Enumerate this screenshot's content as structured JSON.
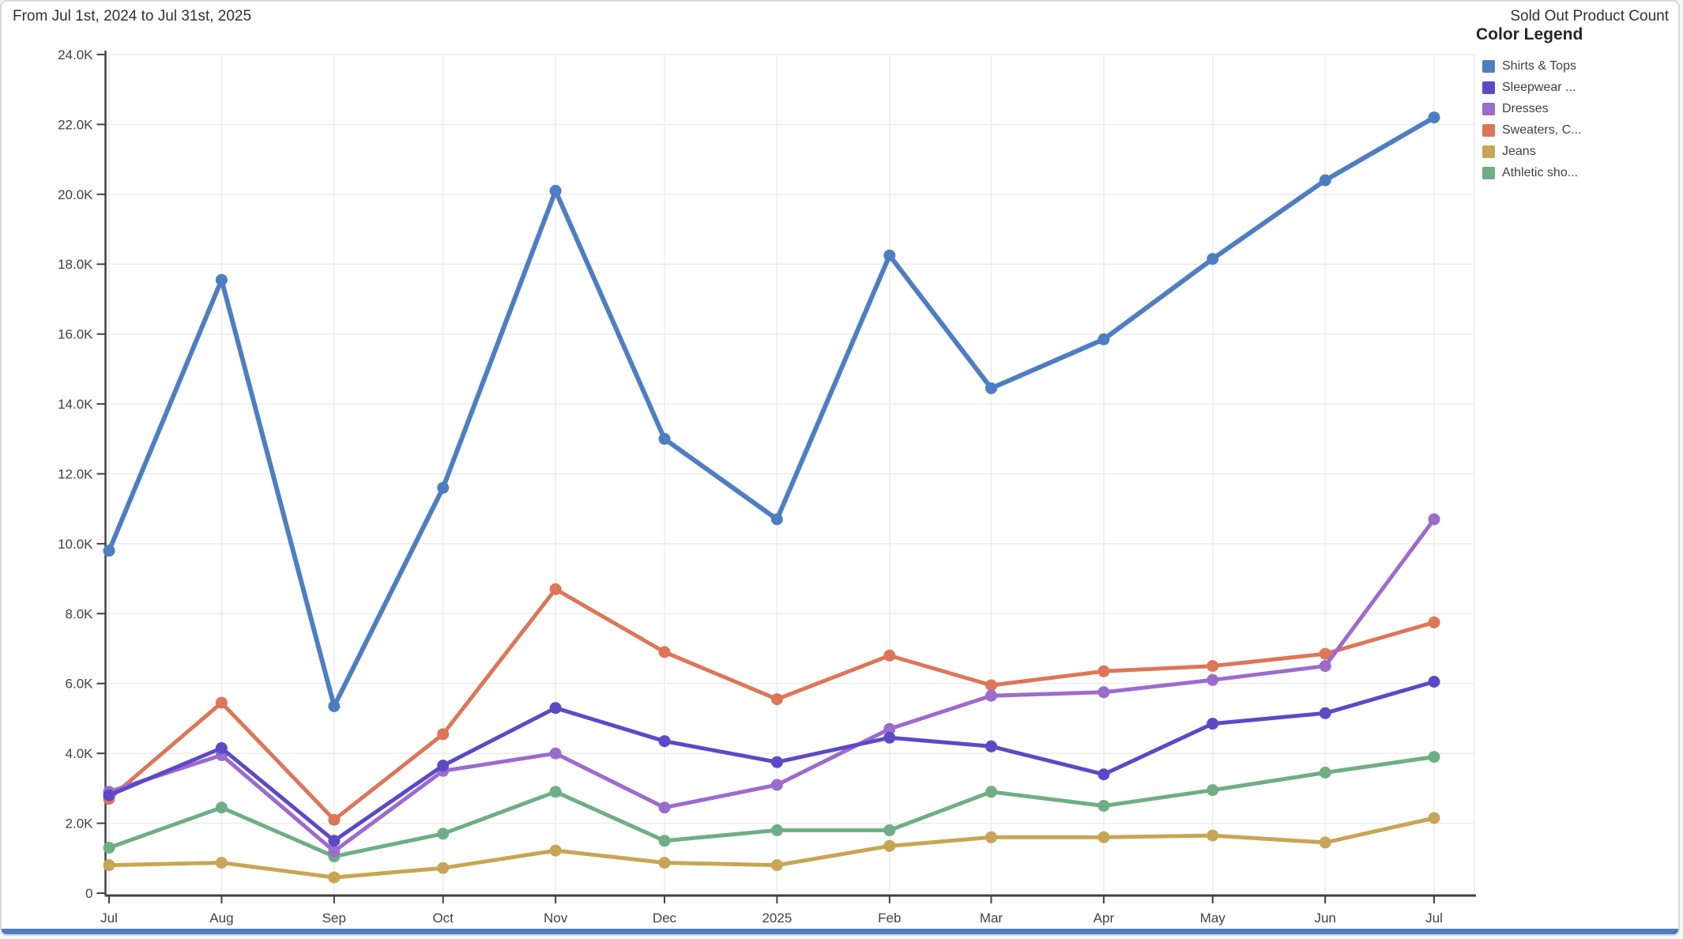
{
  "header": {
    "date_range": "From Jul 1st, 2024 to Jul 31st, 2025",
    "metric_title": "Sold Out Product Count"
  },
  "legend": {
    "title": "Color Legend"
  },
  "accents": {
    "bottom_bar_color": "#4d7ec2",
    "axis_color": "#424242",
    "grid_color": "#ececec",
    "tick_label_color": "#424242"
  },
  "chart_data": {
    "type": "line",
    "title": "Sold Out Product Count",
    "xlabel": "",
    "ylabel": "",
    "x_tick_labels": [
      "Jul",
      "Aug",
      "Sep",
      "Oct",
      "Nov",
      "Dec",
      "2025",
      "Feb",
      "Mar",
      "Apr",
      "May",
      "Jun",
      "Jul"
    ],
    "x_day_offsets": [
      0,
      31,
      62,
      92,
      123,
      153,
      184,
      215,
      243,
      274,
      304,
      335,
      365
    ],
    "y_tick_labels": [
      "0",
      "2.0K",
      "4.0K",
      "6.0K",
      "8.0K",
      "10.0K",
      "12.0K",
      "14.0K",
      "16.0K",
      "18.0K",
      "20.0K",
      "22.0K",
      "24.0K"
    ],
    "y_tick_values": [
      0,
      2000,
      4000,
      6000,
      8000,
      10000,
      12000,
      14000,
      16000,
      18000,
      20000,
      22000,
      24000
    ],
    "ylim": [
      0,
      24000
    ],
    "grid": true,
    "legend_position": "right",
    "series": [
      {
        "name": "Shirts & Tops",
        "color": "#4d7ec2",
        "values": [
          9800,
          17550,
          5350,
          11600,
          20100,
          13000,
          10700,
          18250,
          14450,
          15850,
          18150,
          20400,
          22200
        ]
      },
      {
        "name": "Sleepwear ...",
        "color": "#5c49c6",
        "values": [
          2800,
          4150,
          1500,
          3650,
          5300,
          4350,
          3750,
          4450,
          4200,
          3400,
          4850,
          5150,
          6050
        ]
      },
      {
        "name": "Dresses",
        "color": "#9c6bce",
        "values": [
          2900,
          3950,
          1200,
          3500,
          4000,
          2450,
          3100,
          4700,
          5650,
          5750,
          6100,
          6500,
          10700
        ]
      },
      {
        "name": "Sweaters, C...",
        "color": "#dd7658",
        "values": [
          2700,
          5450,
          2100,
          4550,
          8700,
          6900,
          5550,
          6800,
          5950,
          6350,
          6500,
          6850,
          7750
        ]
      },
      {
        "name": "Jeans",
        "color": "#c8a554",
        "values": [
          800,
          870,
          450,
          720,
          1220,
          870,
          800,
          1350,
          1600,
          1600,
          1650,
          1450,
          2150
        ]
      },
      {
        "name": "Athletic sho...",
        "color": "#6fae84",
        "values": [
          1300,
          2450,
          1050,
          1700,
          2900,
          1500,
          1800,
          1800,
          2900,
          2500,
          2950,
          3450,
          3900
        ]
      }
    ]
  }
}
